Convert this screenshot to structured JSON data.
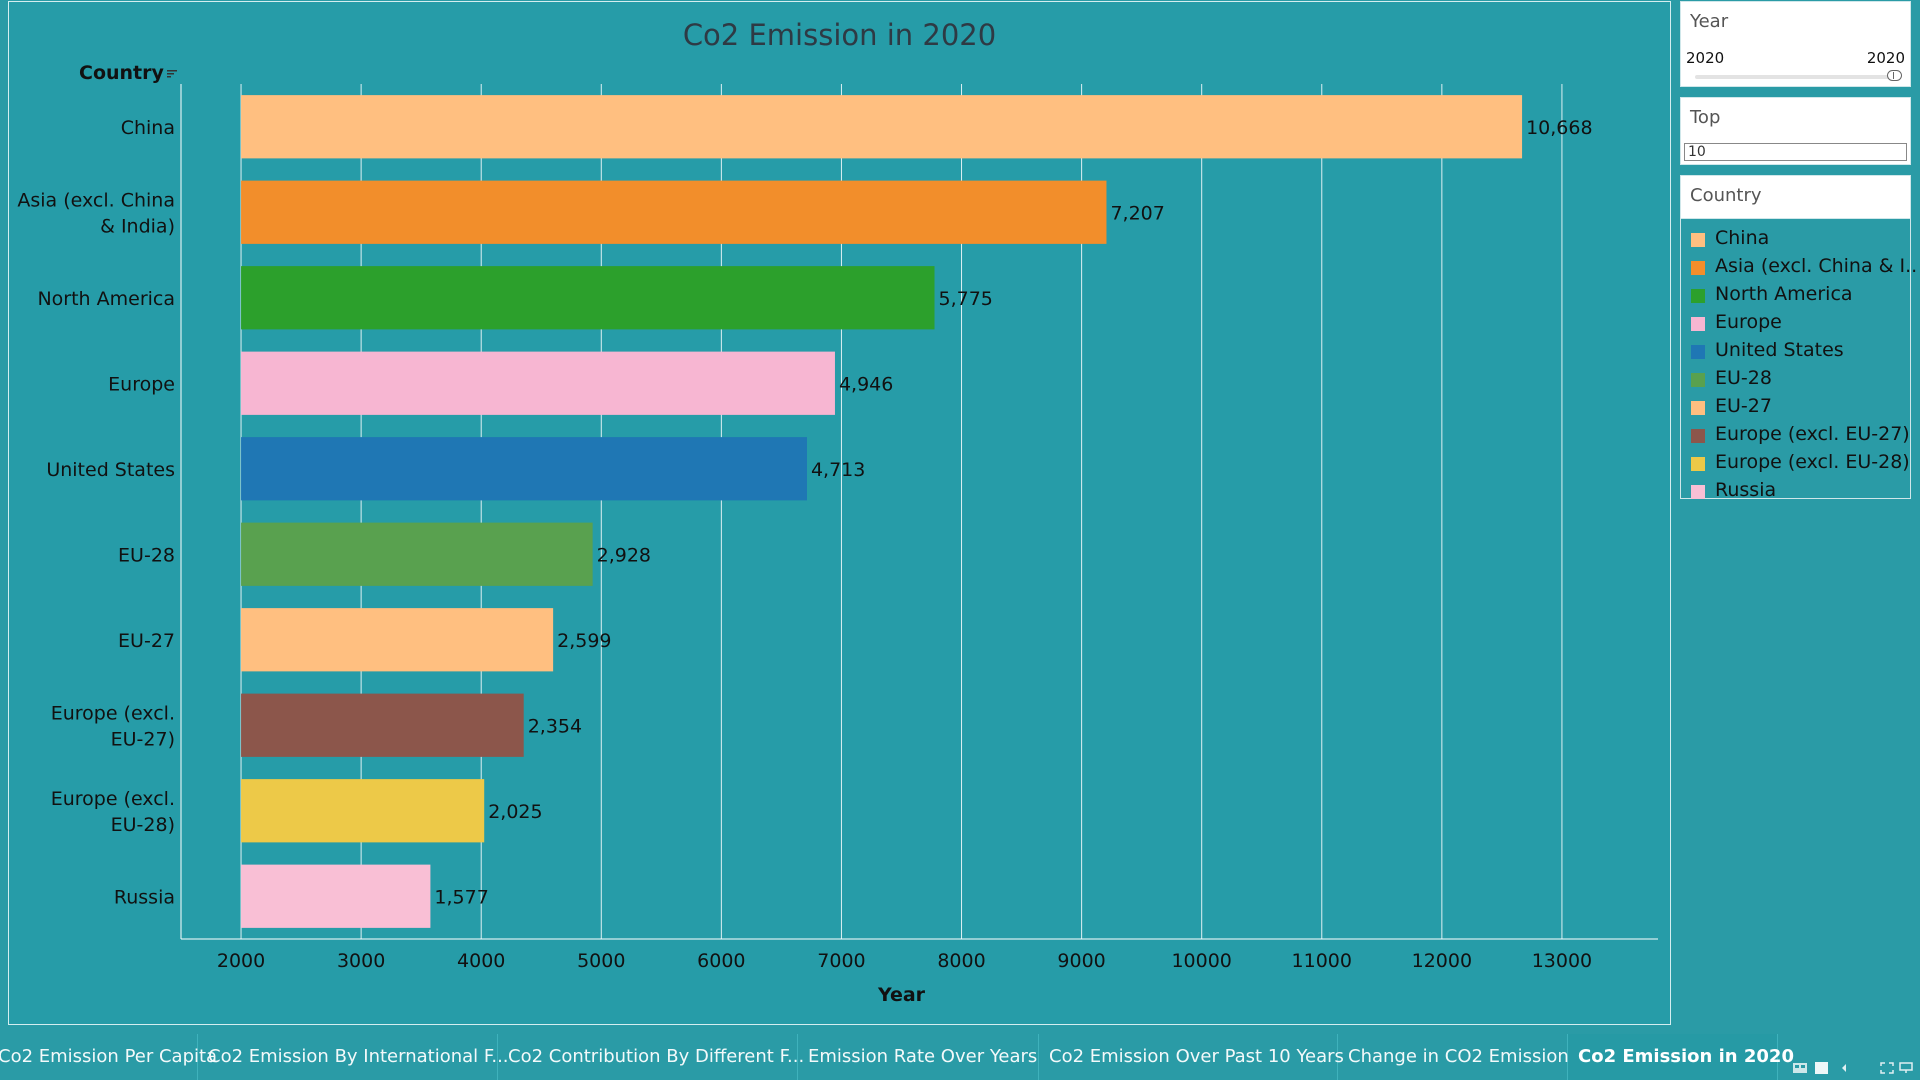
{
  "chart_data": {
    "type": "bar",
    "orientation": "horizontal",
    "title": "Co2 Emission in 2020",
    "row_header": "Country",
    "xlabel": "Year",
    "xlim": [
      1500,
      13800
    ],
    "baseline": 2000,
    "ticks": [
      2000,
      3000,
      4000,
      5000,
      6000,
      7000,
      8000,
      9000,
      10000,
      11000,
      12000,
      13000
    ],
    "tick_labels": [
      "2000",
      "3000",
      "4000",
      "5000",
      "6000",
      "7000",
      "8000",
      "9000",
      "10000",
      "11000",
      "12000",
      "13000"
    ],
    "grid": true,
    "categories": [
      "China",
      "Asia (excl. China & India)",
      "North America",
      "Europe",
      "United States",
      "EU-28",
      "EU-27",
      "Europe (excl. EU-27)",
      "Europe (excl. EU-28)",
      "Russia"
    ],
    "category_lines": [
      [
        "China"
      ],
      [
        "Asia (excl. China",
        "& India)"
      ],
      [
        "North America"
      ],
      [
        "Europe"
      ],
      [
        "United States"
      ],
      [
        "EU-28"
      ],
      [
        "EU-27"
      ],
      [
        "Europe (excl.",
        "EU-27)"
      ],
      [
        "Europe (excl.",
        "EU-28)"
      ],
      [
        "Russia"
      ]
    ],
    "values": [
      10668,
      7207,
      5775,
      4946,
      4713,
      2928,
      2599,
      2354,
      2025,
      1577
    ],
    "value_labels": [
      "10,668",
      "7,207",
      "5,775",
      "4,946",
      "4,713",
      "2,928",
      "2,599",
      "2,354",
      "2,025",
      "1,577"
    ],
    "colors": [
      "#ffbf80",
      "#f28e2b",
      "#2ca02c",
      "#f7b6d2",
      "#1f77b4",
      "#59a14f",
      "#ffbf80",
      "#8c564b",
      "#edc948",
      "#f9bfd5"
    ]
  },
  "filters": {
    "year": {
      "title": "Year",
      "min_label": "2020",
      "max_label": "2020"
    },
    "top": {
      "title": "Top",
      "value": "10"
    },
    "country": {
      "title": "Country"
    }
  },
  "legend": {
    "items": [
      {
        "label": "China",
        "color": "#ffbf80"
      },
      {
        "label": "Asia (excl. China & I..",
        "color": "#f28e2b"
      },
      {
        "label": "North America",
        "color": "#2ca02c"
      },
      {
        "label": "Europe",
        "color": "#f7b6d2"
      },
      {
        "label": "United States",
        "color": "#1f77b4"
      },
      {
        "label": "EU-28",
        "color": "#59a14f"
      },
      {
        "label": "EU-27",
        "color": "#ffbf80"
      },
      {
        "label": "Europe (excl. EU-27)",
        "color": "#8c564b"
      },
      {
        "label": "Europe (excl. EU-28)",
        "color": "#edc948"
      },
      {
        "label": "Russia",
        "color": "#f9bfd5"
      }
    ]
  },
  "tabs": [
    {
      "label": "Co2 Emission Per Capita",
      "active": false
    },
    {
      "label": "Co2 Emission By International  F...",
      "active": false
    },
    {
      "label": "Co2 Contribution By Different F...",
      "active": false
    },
    {
      "label": "Emission Rate Over Years",
      "active": false
    },
    {
      "label": "Co2 Emission Over Past 10 Years",
      "active": false
    },
    {
      "label": "Change in CO2 Emission",
      "active": false
    },
    {
      "label": "Co2 Emission in 2020",
      "active": true
    }
  ],
  "nav_icons": [
    "filmstrip-icon",
    "tile-icon",
    "previous-icon",
    "fullscreen-icon",
    "present-icon"
  ]
}
